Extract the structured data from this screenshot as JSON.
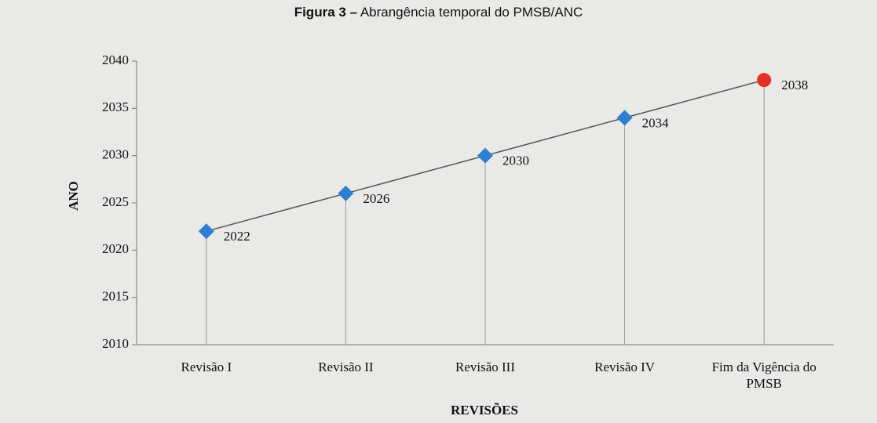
{
  "chart_data": {
    "type": "line",
    "figure_label": "Figura 3 –",
    "title": "Abrangência temporal do PMSB/ANC",
    "x_label": "REVISÕES",
    "y_label": "ANO",
    "categories": [
      "Revisão I",
      "Revisão II",
      "Revisão III",
      "Revisão IV",
      "Fim da Vigência do PMSB"
    ],
    "series": [
      {
        "name": "ANO",
        "color": "#2f7fd0",
        "line_color": "#555555",
        "point_colors": [
          "#2f7fd0",
          "#2f7fd0",
          "#2f7fd0",
          "#2f7fd0",
          "#e63027"
        ],
        "values": [
          2022,
          2026,
          2030,
          2034,
          2038
        ]
      }
    ],
    "ylim": [
      2010,
      2040
    ],
    "yticks": [
      2010,
      2015,
      2020,
      2025,
      2030,
      2035,
      2040
    ],
    "drop_lines": true
  }
}
